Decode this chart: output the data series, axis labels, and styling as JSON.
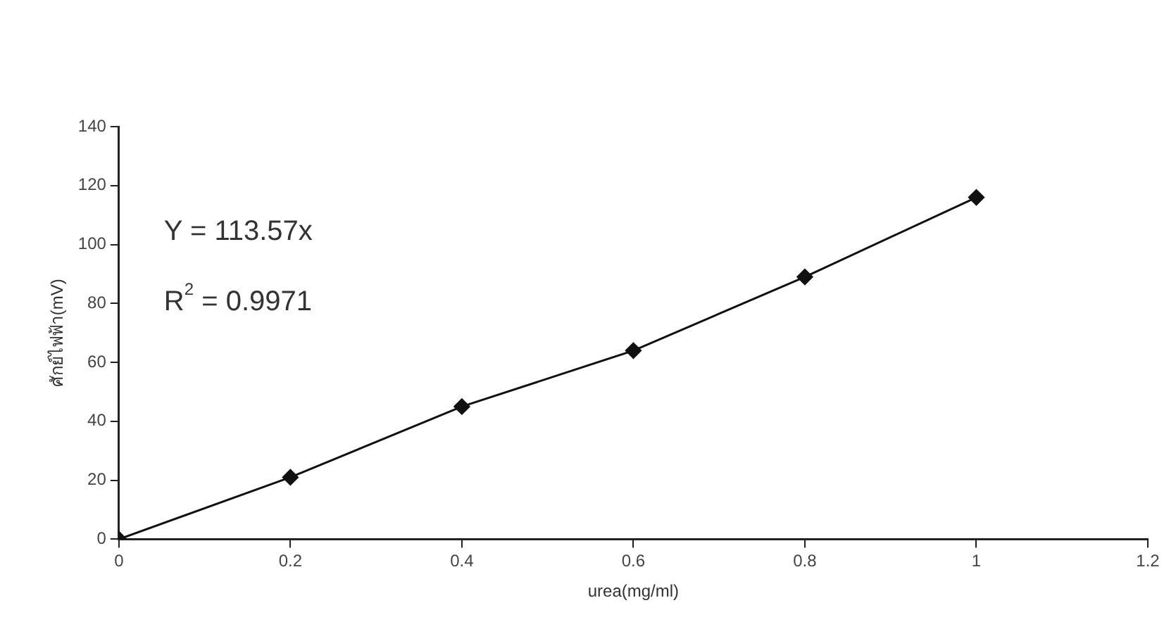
{
  "chart_data": {
    "type": "line",
    "xlabel": "urea(mg/ml)",
    "ylabel": "ศักย์ไฟฟ้า(mV)",
    "x": [
      0,
      0.2,
      0.4,
      0.6,
      0.8,
      1
    ],
    "series": [
      {
        "color": "#111111",
        "values": [
          0,
          21,
          45,
          64,
          89,
          116
        ]
      }
    ],
    "xlim": [
      0,
      1.2
    ],
    "xticks": [
      0,
      0.2,
      0.4,
      0.6,
      0.8,
      1,
      1.2
    ],
    "ylim": [
      0,
      140
    ],
    "yticks": [
      0,
      20,
      40,
      60,
      80,
      100,
      120,
      140
    ],
    "annotations": [
      "Y = 113.57x",
      "R$^{2}$ = 0.9971"
    ],
    "grid": false,
    "legend": false,
    "marker": "diamond",
    "line_style": "solid"
  }
}
